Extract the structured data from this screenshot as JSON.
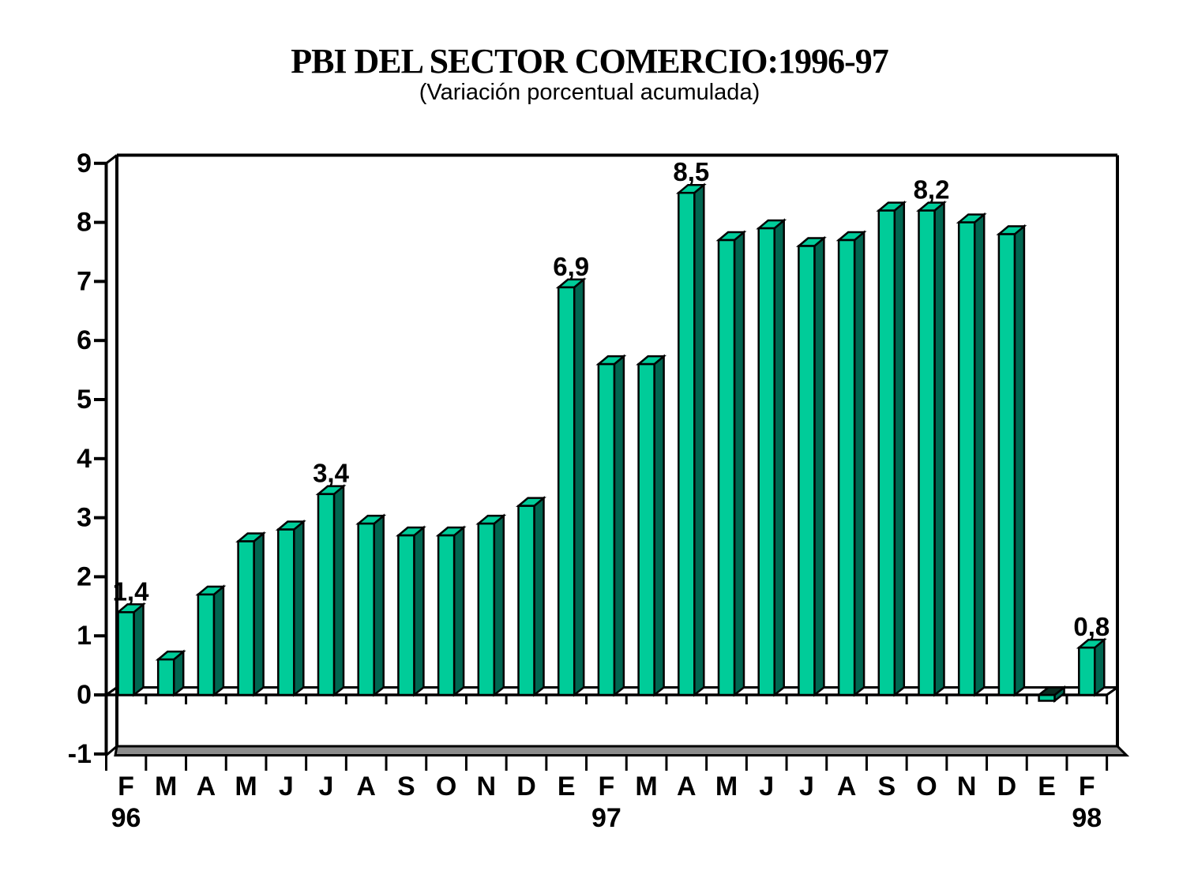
{
  "chart_data": {
    "type": "bar",
    "style": "3d-columns",
    "title": "PBI DEL SECTOR COMERCIO:1996-97",
    "subtitle": "(Variación porcentual acumulada)",
    "categories": [
      "F",
      "M",
      "A",
      "M",
      "J",
      "J",
      "A",
      "S",
      "O",
      "N",
      "D",
      "E",
      "F",
      "M",
      "A",
      "M",
      "J",
      "J",
      "A",
      "S",
      "O",
      "N",
      "D",
      "E",
      "F"
    ],
    "values": [
      1.4,
      0.6,
      1.7,
      2.6,
      2.8,
      3.4,
      2.9,
      2.7,
      2.7,
      2.9,
      3.2,
      6.9,
      5.6,
      5.6,
      8.5,
      7.7,
      7.9,
      7.6,
      7.7,
      8.2,
      8.2,
      8.0,
      7.8,
      -0.1,
      0.8
    ],
    "point_labels": {
      "0": "1,4",
      "5": "3,4",
      "11": "6,9",
      "14": "8,5",
      "20": "8,2",
      "24": "0,8"
    },
    "year_labels": [
      {
        "text": "96",
        "index": 0
      },
      {
        "text": "97",
        "index": 12
      },
      {
        "text": "98",
        "index": 24
      }
    ],
    "y_ticks": [
      "9",
      "8",
      "7",
      "6",
      "5",
      "4",
      "3",
      "2",
      "1",
      "0",
      "-1"
    ],
    "ylim": [
      -1,
      9
    ],
    "xlabel": "",
    "ylabel": "",
    "grid": false,
    "legend": false,
    "colors": {
      "bar_front": "#00CC99",
      "bar_top": "#00CC99",
      "bar_side": "#006650",
      "bar_negative_top": "#0B2B20",
      "floor": "#8C8C8C",
      "line": "#000000",
      "text": "#000000",
      "background": "#FFFFFF"
    }
  }
}
